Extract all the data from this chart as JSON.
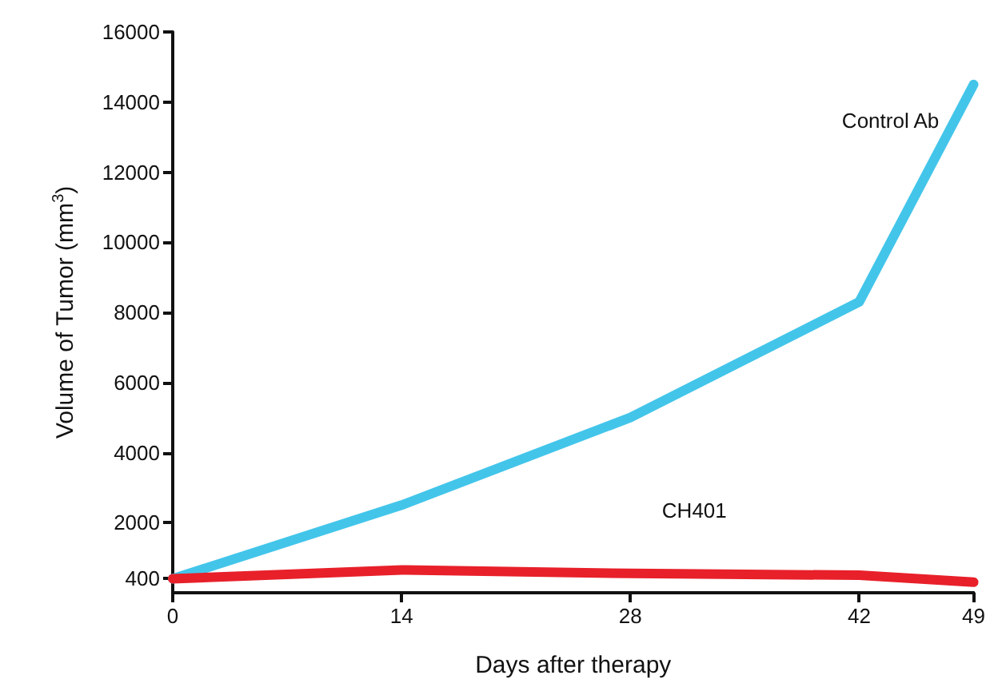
{
  "chart_data": {
    "type": "line",
    "xlabel": "Days after therapy",
    "ylabel": "Volume of Tumor (mm$^{3}$)",
    "x": [
      0,
      14,
      28,
      42,
      49
    ],
    "series": [
      {
        "name": "Control Ab",
        "color": "#43c5ea",
        "values": [
          400,
          2500,
          5000,
          8300,
          14500
        ]
      },
      {
        "name": "CH401",
        "color": "#e8202a",
        "values": [
          400,
          650,
          550,
          500,
          300
        ]
      }
    ],
    "xlim": [
      0,
      49
    ],
    "xticks": [
      0,
      14,
      28,
      42,
      49
    ],
    "ylim": [
      0,
      16000
    ],
    "yticks": [
      400,
      2000,
      4000,
      6000,
      8000,
      10000,
      12000,
      14000,
      16000
    ],
    "grid": false,
    "marker": "none",
    "line_style": "solid"
  }
}
